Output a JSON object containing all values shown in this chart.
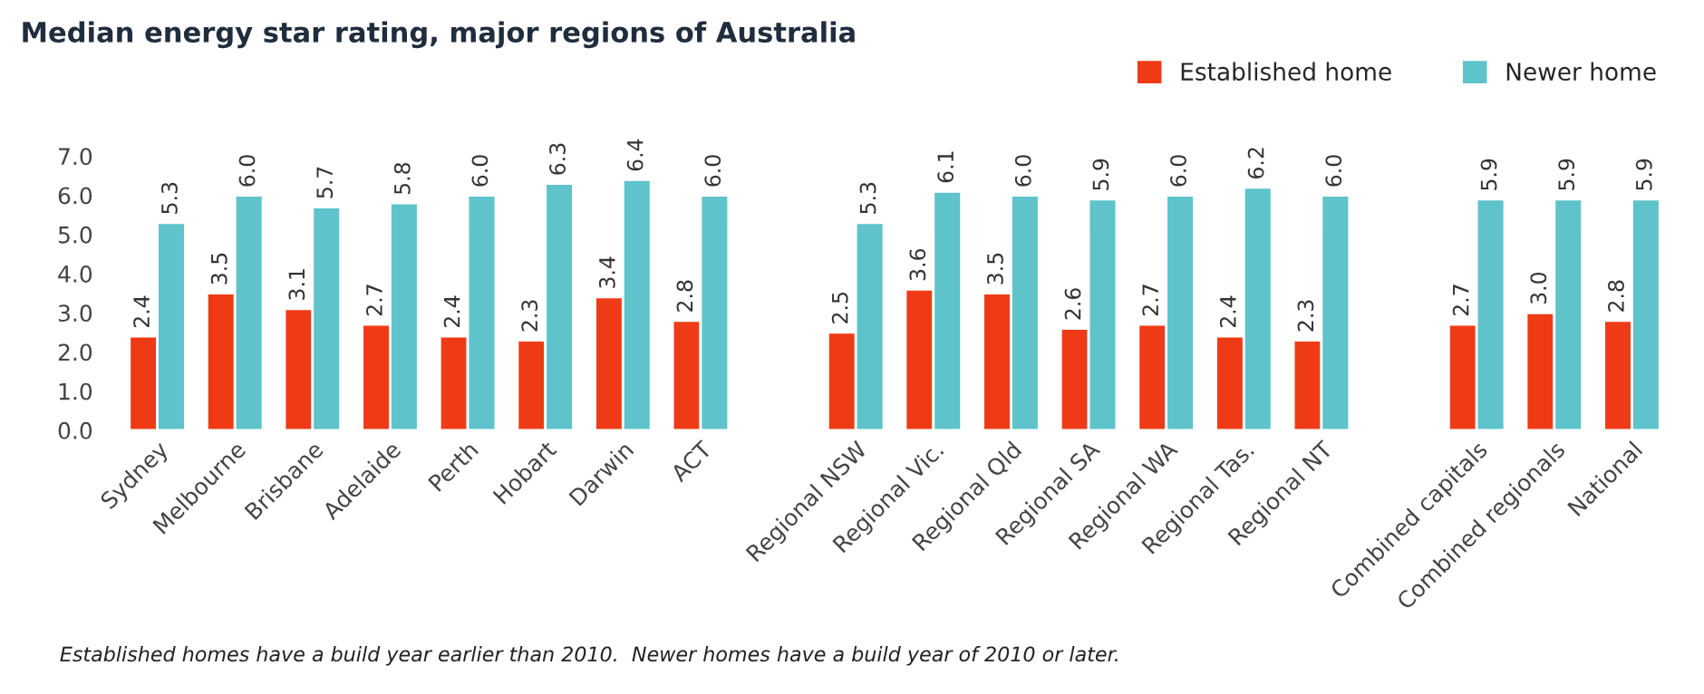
{
  "chart_data": {
    "type": "bar",
    "title": "Median energy star rating, major regions of Australia",
    "categories": [
      "Sydney",
      "Melbourne",
      "Brisbane",
      "Adelaide",
      "Perth",
      "Hobart",
      "Darwin",
      "ACT",
      null,
      "Regional NSW",
      "Regional Vic.",
      "Regional Qld",
      "Regional SA",
      "Regional WA",
      "Regional Tas.",
      "Regional NT",
      null,
      "Combined capitals",
      "Combined regionals",
      "National"
    ],
    "series": [
      {
        "name": "Established home",
        "color": "#ee3b16",
        "values": [
          2.4,
          3.5,
          3.1,
          2.7,
          2.4,
          2.3,
          3.4,
          2.8,
          null,
          2.5,
          3.6,
          3.5,
          2.6,
          2.7,
          2.4,
          2.3,
          null,
          2.7,
          3.0,
          2.8
        ],
        "value_labels": [
          "2.4",
          "3.5",
          "3.1",
          "2.7",
          "2.4",
          "2.3",
          "3.4",
          "2.8",
          null,
          "2.5",
          "3.6",
          "3.5",
          "2.6",
          "2.7",
          "2.4",
          "2.3",
          null,
          "2.7",
          "3.0",
          "2.8"
        ]
      },
      {
        "name": "Newer home",
        "color": "#5ec3ca",
        "values": [
          5.3,
          6.0,
          5.7,
          5.8,
          6.0,
          6.3,
          6.4,
          6.0,
          null,
          5.3,
          6.1,
          6.0,
          5.9,
          6.0,
          6.2,
          6.0,
          null,
          5.9,
          5.9,
          5.9
        ],
        "value_labels": [
          "5.3",
          "6.0",
          "5.7",
          "5.8",
          "6.0",
          "6.3",
          "6.4",
          "6.0",
          null,
          "5.3",
          "6.1",
          "6.0",
          "5.9",
          "6.0",
          "6.2",
          "6.0",
          null,
          "5.9",
          "5.9",
          "5.9"
        ]
      }
    ],
    "ylim": [
      0,
      7
    ],
    "yticks": [
      {
        "value": 0,
        "label": "0.0"
      },
      {
        "value": 1,
        "label": "1.0"
      },
      {
        "value": 2,
        "label": "2.0"
      },
      {
        "value": 3,
        "label": "3.0"
      },
      {
        "value": 4,
        "label": "4.0"
      },
      {
        "value": 5,
        "label": "5.0"
      },
      {
        "value": 6,
        "label": "6.0"
      },
      {
        "value": 7,
        "label": "7.0"
      }
    ],
    "grid": false,
    "legend": "top right",
    "annotations": [
      "Established homes have a build year earlier than 2010.  Newer homes have a build year of 2010 or later."
    ]
  }
}
